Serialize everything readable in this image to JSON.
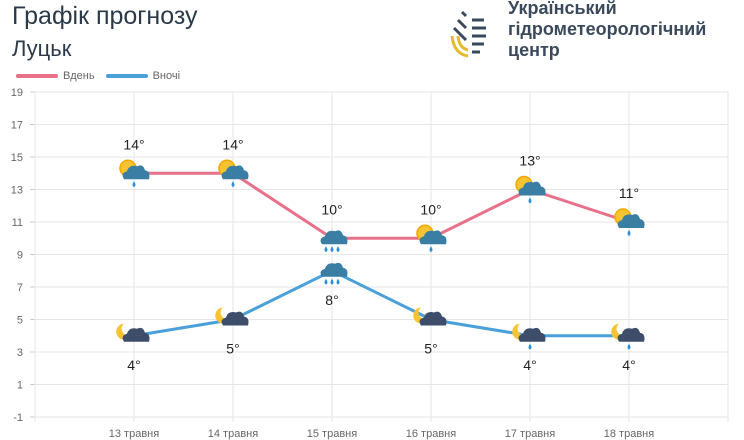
{
  "header": {
    "title": "Графік прогнозу",
    "city": "Луцьк"
  },
  "logo": {
    "org_lines": [
      "Український",
      "гідрометеорологічний",
      "центр"
    ]
  },
  "colors": {
    "day": "#e8718a",
    "night": "#4aa0d8"
  },
  "chart_data": {
    "type": "line",
    "categories": [
      "13 травня",
      "14 травня",
      "15 травня",
      "16 травня",
      "17 травня",
      "18 травня"
    ],
    "series": [
      {
        "name": "Вдень",
        "values": [
          14,
          14,
          10,
          10,
          13,
          11
        ],
        "labels": [
          "14°",
          "14°",
          "10°",
          "10°",
          "13°",
          "11°"
        ],
        "icons": [
          "sun-cloud-rain",
          "sun-cloud-rain",
          "cloud-rain",
          "sun-cloud-rain",
          "sun-cloud-rain",
          "sun-cloud-rain"
        ]
      },
      {
        "name": "Вночі",
        "values": [
          4,
          5,
          8,
          5,
          4,
          4
        ],
        "labels": [
          "4°",
          "5°",
          "8°",
          "5°",
          "4°",
          "4°"
        ],
        "icons": [
          "moon-cloud",
          "moon-cloud",
          "cloud-rain",
          "moon-cloud",
          "moon-cloud-rain",
          "moon-cloud-rain"
        ]
      }
    ],
    "ylim": [
      -1,
      19
    ],
    "yticks": [
      "19",
      "17",
      "15",
      "13",
      "11",
      "9",
      "7",
      "5",
      "3",
      "1",
      "-1"
    ],
    "grid": true,
    "legend": "top-left"
  }
}
